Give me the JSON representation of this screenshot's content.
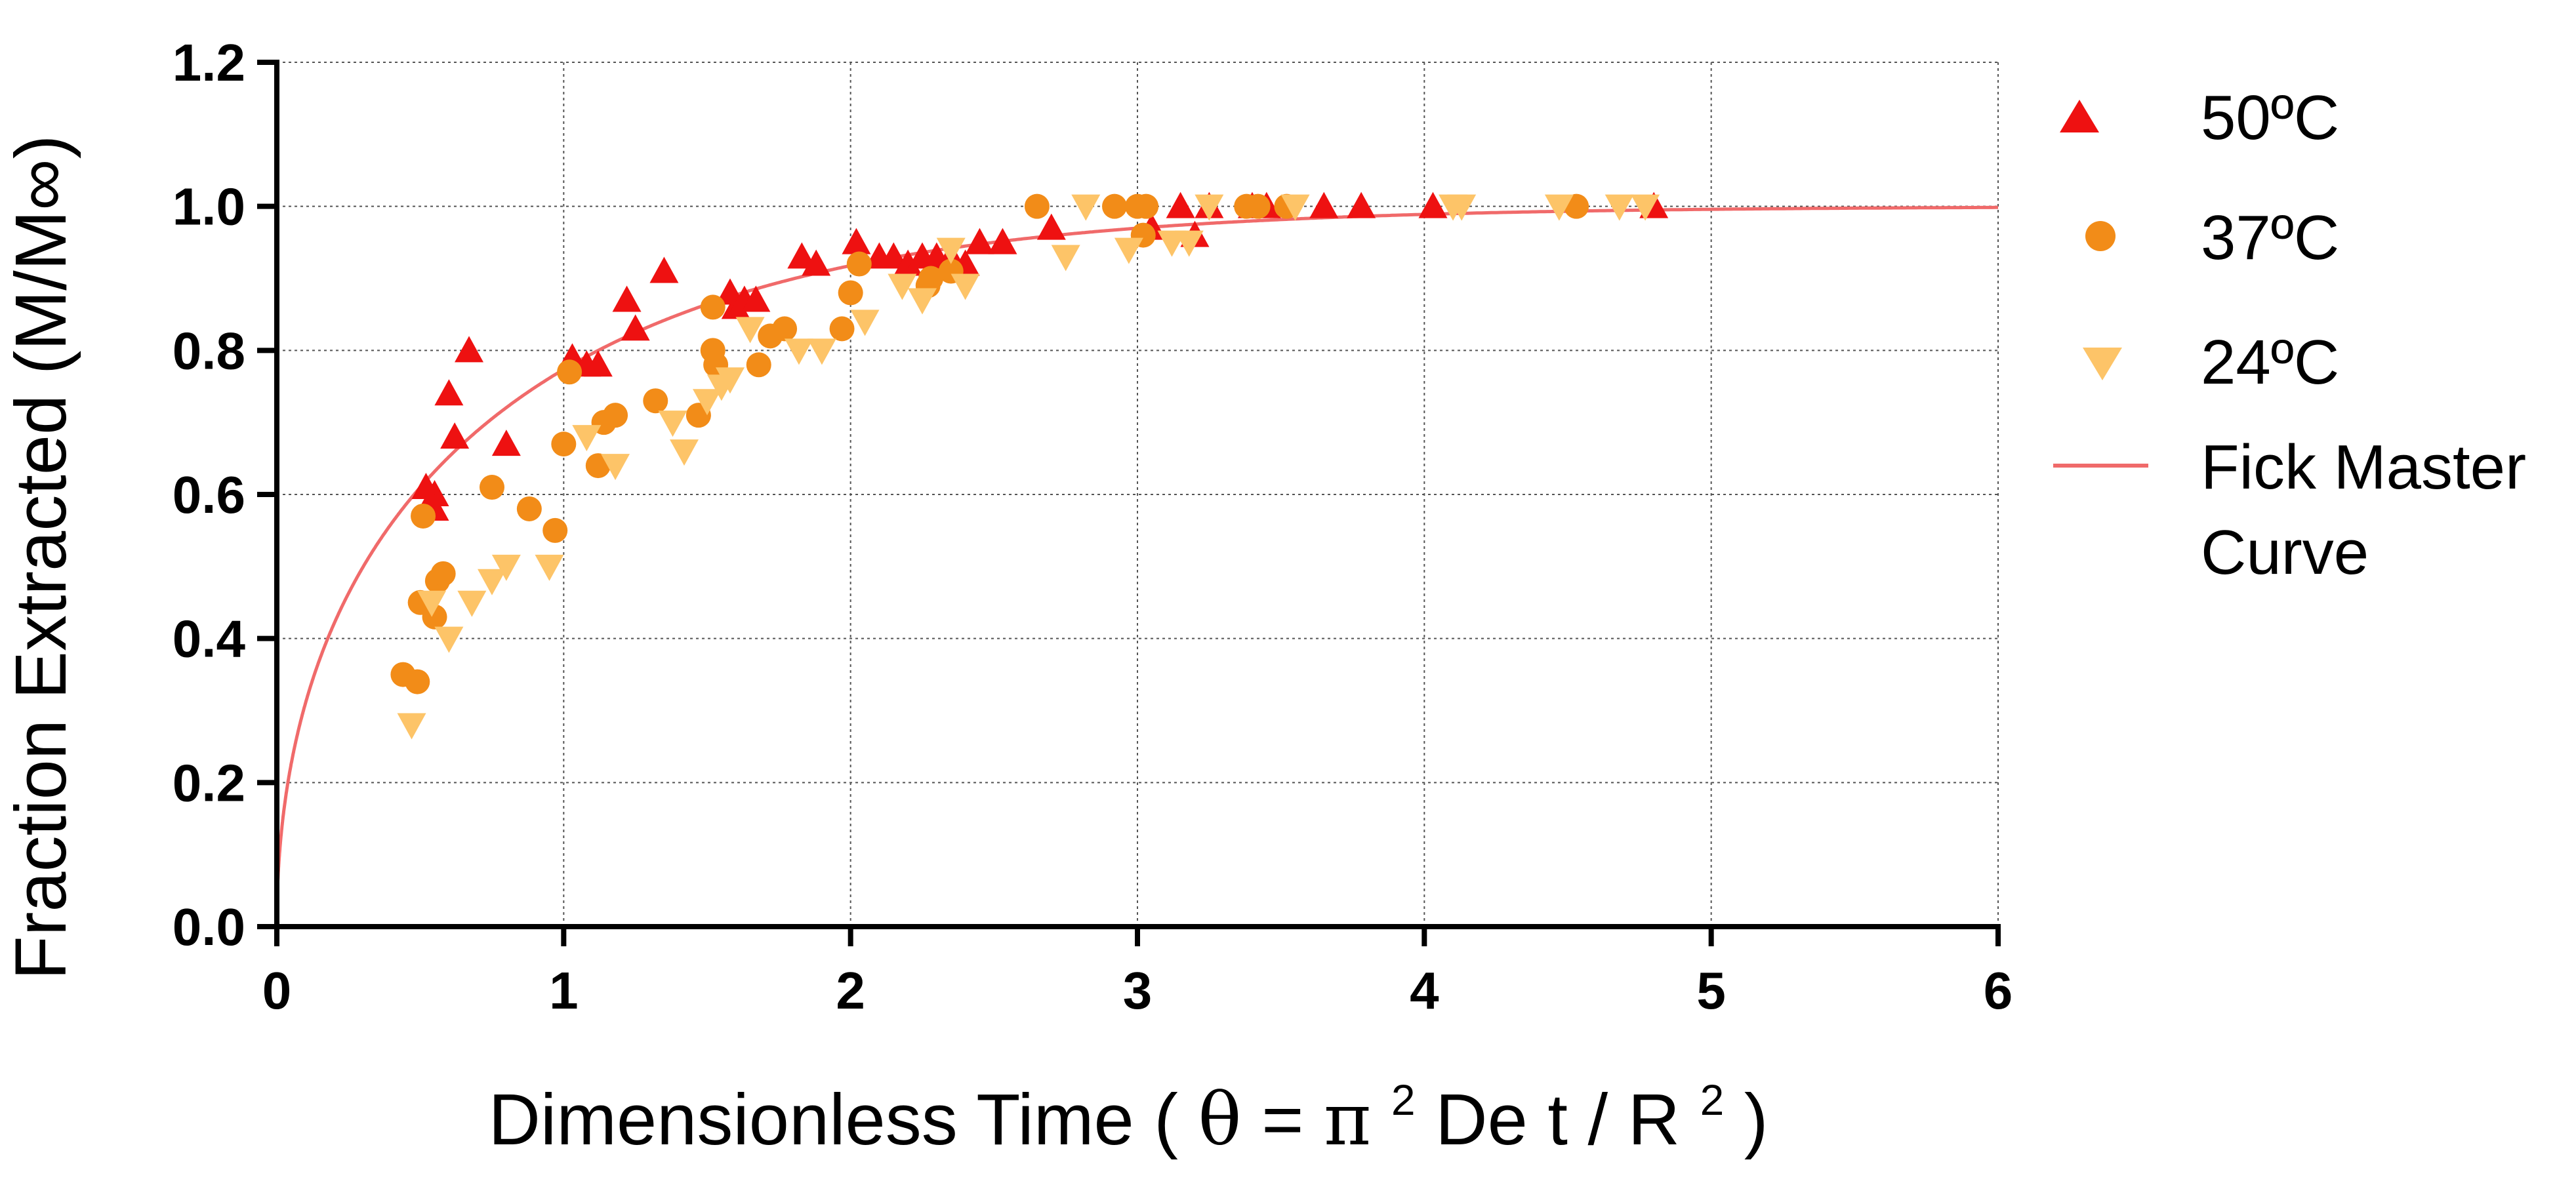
{
  "chart_data": {
    "type": "scatter",
    "title": "",
    "xlabel_parts": {
      "prefix": "Dimensionless Time ( ",
      "theta": "θ",
      "eq": " = ",
      "pi": "π",
      "pi_exp": "2",
      "mid": " De t / R",
      "r_exp": "2",
      "suffix": " )"
    },
    "ylabel": "Fraction Extracted (M/M∞)",
    "xlim": [
      0,
      6
    ],
    "ylim": [
      0,
      1.2
    ],
    "x_ticks": [
      "0",
      "1",
      "2",
      "3",
      "4",
      "5",
      "6"
    ],
    "y_ticks": [
      "0.0",
      "0.2",
      "0.4",
      "0.6",
      "0.8",
      "1.0",
      "1.2"
    ],
    "grid": true,
    "legend_position": "right",
    "series": [
      {
        "name": "50ºC",
        "marker": "triangle-up",
        "color": "#ee1111",
        "points": [
          [
            0.52,
            0.61
          ],
          [
            0.55,
            0.6
          ],
          [
            0.55,
            0.58
          ],
          [
            0.6,
            0.74
          ],
          [
            0.62,
            0.68
          ],
          [
            0.67,
            0.8
          ],
          [
            0.8,
            0.67
          ],
          [
            1.03,
            0.79
          ],
          [
            1.08,
            0.78
          ],
          [
            1.12,
            0.78
          ],
          [
            1.22,
            0.87
          ],
          [
            1.25,
            0.83
          ],
          [
            1.35,
            0.91
          ],
          [
            1.58,
            0.88
          ],
          [
            1.6,
            0.86
          ],
          [
            1.63,
            0.87
          ],
          [
            1.67,
            0.87
          ],
          [
            1.83,
            0.93
          ],
          [
            1.88,
            0.92
          ],
          [
            2.02,
            0.95
          ],
          [
            2.1,
            0.93
          ],
          [
            2.15,
            0.93
          ],
          [
            2.2,
            0.92
          ],
          [
            2.25,
            0.93
          ],
          [
            2.3,
            0.93
          ],
          [
            2.35,
            0.93
          ],
          [
            2.4,
            0.92
          ],
          [
            2.45,
            0.95
          ],
          [
            2.53,
            0.95
          ],
          [
            2.7,
            0.97
          ],
          [
            3.05,
            0.97
          ],
          [
            3.15,
            1.0
          ],
          [
            3.2,
            0.96
          ],
          [
            3.25,
            1.0
          ],
          [
            3.4,
            1.0
          ],
          [
            3.45,
            1.0
          ],
          [
            3.65,
            1.0
          ],
          [
            3.78,
            1.0
          ],
          [
            4.03,
            1.0
          ],
          [
            4.8,
            1.0
          ]
        ]
      },
      {
        "name": "37ºC",
        "marker": "circle",
        "color": "#f28c18",
        "points": [
          [
            0.44,
            0.35
          ],
          [
            0.49,
            0.34
          ],
          [
            0.5,
            0.45
          ],
          [
            0.51,
            0.57
          ],
          [
            0.55,
            0.43
          ],
          [
            0.56,
            0.48
          ],
          [
            0.58,
            0.49
          ],
          [
            0.75,
            0.61
          ],
          [
            0.88,
            0.58
          ],
          [
            0.97,
            0.55
          ],
          [
            1.0,
            0.67
          ],
          [
            1.02,
            0.77
          ],
          [
            1.12,
            0.64
          ],
          [
            1.14,
            0.7
          ],
          [
            1.18,
            0.71
          ],
          [
            1.32,
            0.73
          ],
          [
            1.47,
            0.71
          ],
          [
            1.52,
            0.86
          ],
          [
            1.52,
            0.8
          ],
          [
            1.53,
            0.78
          ],
          [
            1.68,
            0.78
          ],
          [
            1.72,
            0.82
          ],
          [
            1.77,
            0.83
          ],
          [
            1.97,
            0.83
          ],
          [
            2.0,
            0.88
          ],
          [
            2.03,
            0.92
          ],
          [
            2.27,
            0.89
          ],
          [
            2.28,
            0.9
          ],
          [
            2.35,
            0.91
          ],
          [
            2.65,
            1.0
          ],
          [
            2.92,
            1.0
          ],
          [
            3.0,
            1.0
          ],
          [
            3.02,
            0.96
          ],
          [
            3.03,
            1.0
          ],
          [
            3.38,
            1.0
          ],
          [
            3.42,
            1.0
          ],
          [
            3.52,
            1.0
          ],
          [
            4.53,
            1.0
          ]
        ]
      },
      {
        "name": "24ºC",
        "marker": "triangle-down",
        "color": "#fdc468",
        "points": [
          [
            0.47,
            0.28
          ],
          [
            0.54,
            0.45
          ],
          [
            0.6,
            0.4
          ],
          [
            0.68,
            0.45
          ],
          [
            0.75,
            0.48
          ],
          [
            0.8,
            0.5
          ],
          [
            0.95,
            0.5
          ],
          [
            1.08,
            0.68
          ],
          [
            1.18,
            0.64
          ],
          [
            1.38,
            0.7
          ],
          [
            1.42,
            0.66
          ],
          [
            1.5,
            0.73
          ],
          [
            1.55,
            0.75
          ],
          [
            1.58,
            0.76
          ],
          [
            1.65,
            0.83
          ],
          [
            1.82,
            0.8
          ],
          [
            1.9,
            0.8
          ],
          [
            2.05,
            0.84
          ],
          [
            2.18,
            0.89
          ],
          [
            2.25,
            0.87
          ],
          [
            2.35,
            0.94
          ],
          [
            2.4,
            0.89
          ],
          [
            2.75,
            0.93
          ],
          [
            2.82,
            1.0
          ],
          [
            2.97,
            0.94
          ],
          [
            3.12,
            0.95
          ],
          [
            3.18,
            0.95
          ],
          [
            3.25,
            1.0
          ],
          [
            3.55,
            1.0
          ],
          [
            4.1,
            1.0
          ],
          [
            4.13,
            1.0
          ],
          [
            4.47,
            1.0
          ],
          [
            4.68,
            1.0
          ],
          [
            4.77,
            1.0
          ]
        ]
      },
      {
        "name": "Fick Master Curve",
        "type": "line",
        "color": "#f06a6a"
      }
    ],
    "legend_labels": {
      "s50": "50ºC",
      "s37": "37ºC",
      "s24": "24ºC",
      "fick_line1": "Fick Master",
      "fick_line2": "Curve"
    }
  }
}
